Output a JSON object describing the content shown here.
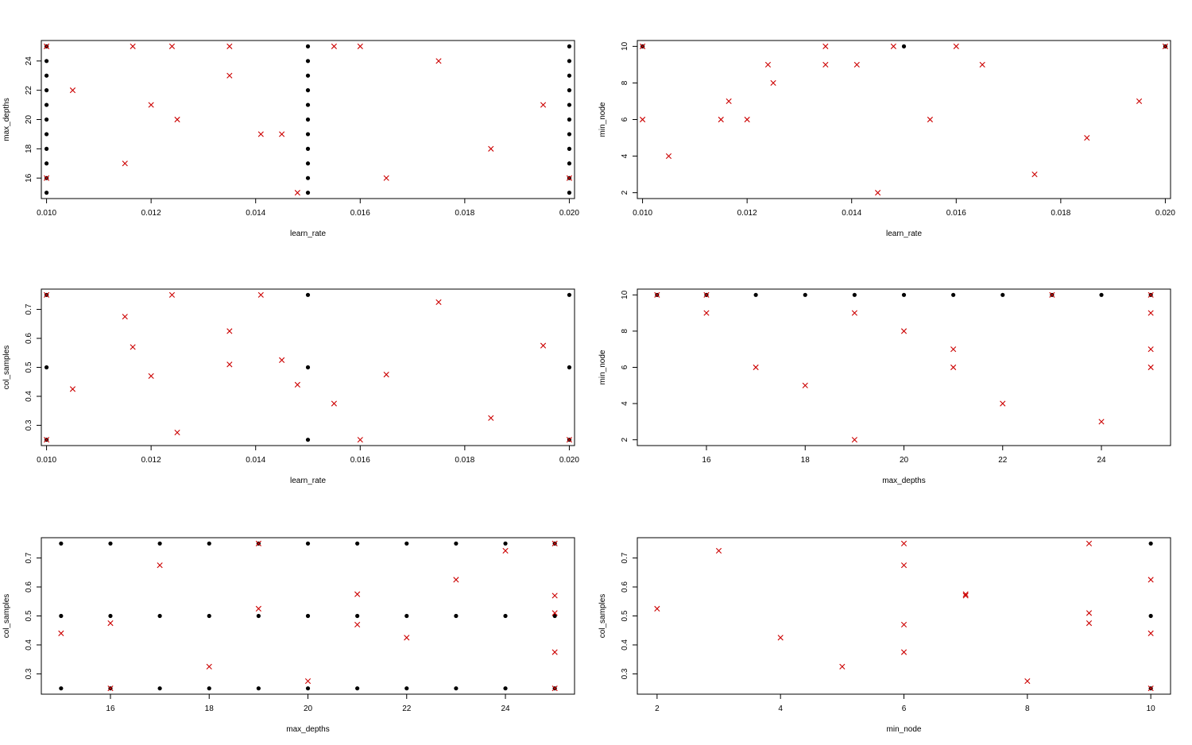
{
  "colors": {
    "grid_points": "#000000",
    "random_points": "#cc0000",
    "frame": "#000000",
    "background": "#ffffff"
  },
  "chart_data": [
    {
      "type": "scatter",
      "xlabel": "learn_rate",
      "ylabel": "max_depths",
      "xlim": [
        0.0099,
        0.0201
      ],
      "ylim": [
        14.6,
        25.4
      ],
      "xticks": [
        "0.010",
        "0.012",
        "0.014",
        "0.016",
        "0.018",
        "0.020"
      ],
      "yticks": [
        "16",
        "18",
        "20",
        "22",
        "24"
      ],
      "series": [
        {
          "marker": "dot",
          "grid_x": [
            0.01,
            0.015,
            0.02
          ],
          "grid_y": [
            15,
            16,
            17,
            18,
            19,
            20,
            21,
            22,
            23,
            24,
            25
          ]
        },
        {
          "marker": "x",
          "points": [
            [
              0.01,
              25
            ],
            [
              0.0105,
              22
            ],
            [
              0.0115,
              17
            ],
            [
              0.01165,
              25
            ],
            [
              0.012,
              21
            ],
            [
              0.0124,
              25
            ],
            [
              0.0125,
              20
            ],
            [
              0.0135,
              25
            ],
            [
              0.0135,
              23
            ],
            [
              0.0141,
              19
            ],
            [
              0.0145,
              19
            ],
            [
              0.0148,
              15
            ],
            [
              0.0155,
              25
            ],
            [
              0.016,
              25
            ],
            [
              0.0165,
              16
            ],
            [
              0.0175,
              24
            ],
            [
              0.0185,
              18
            ],
            [
              0.0195,
              21
            ],
            [
              0.01,
              16
            ],
            [
              0.02,
              16
            ]
          ]
        }
      ]
    },
    {
      "type": "scatter",
      "xlabel": "learn_rate",
      "ylabel": "min_node",
      "xlim": [
        0.0099,
        0.0201
      ],
      "ylim": [
        1.68,
        10.32
      ],
      "xticks": [
        "0.010",
        "0.012",
        "0.014",
        "0.016",
        "0.018",
        "0.020"
      ],
      "yticks": [
        "2",
        "4",
        "6",
        "8",
        "10"
      ],
      "series": [
        {
          "marker": "dot",
          "points": [
            [
              0.01,
              10
            ],
            [
              0.015,
              10
            ],
            [
              0.02,
              10
            ]
          ]
        },
        {
          "marker": "x",
          "points": [
            [
              0.01,
              10
            ],
            [
              0.01,
              6
            ],
            [
              0.0105,
              4
            ],
            [
              0.0115,
              6
            ],
            [
              0.01165,
              7
            ],
            [
              0.012,
              6
            ],
            [
              0.0124,
              9
            ],
            [
              0.0125,
              8
            ],
            [
              0.0135,
              10
            ],
            [
              0.0135,
              9
            ],
            [
              0.0141,
              9
            ],
            [
              0.0145,
              2
            ],
            [
              0.0148,
              10
            ],
            [
              0.0155,
              6
            ],
            [
              0.016,
              10
            ],
            [
              0.0165,
              9
            ],
            [
              0.0175,
              3
            ],
            [
              0.0185,
              5
            ],
            [
              0.0195,
              7
            ],
            [
              0.02,
              10
            ]
          ]
        }
      ]
    },
    {
      "type": "scatter",
      "xlabel": "learn_rate",
      "ylabel": "col_samples",
      "xlim": [
        0.0099,
        0.0201
      ],
      "ylim": [
        0.23,
        0.77
      ],
      "xticks": [
        "0.010",
        "0.012",
        "0.014",
        "0.016",
        "0.018",
        "0.020"
      ],
      "yticks": [
        "0.3",
        "0.4",
        "0.5",
        "0.6",
        "0.7"
      ],
      "series": [
        {
          "marker": "dot",
          "grid_x": [
            0.01,
            0.015,
            0.02
          ],
          "grid_y": [
            0.25,
            0.5,
            0.75
          ]
        },
        {
          "marker": "x",
          "points": [
            [
              0.01,
              0.75
            ],
            [
              0.01,
              0.25
            ],
            [
              0.0105,
              0.425
            ],
            [
              0.0115,
              0.675
            ],
            [
              0.01165,
              0.57
            ],
            [
              0.012,
              0.47
            ],
            [
              0.0124,
              0.75
            ],
            [
              0.0125,
              0.275
            ],
            [
              0.0135,
              0.625
            ],
            [
              0.0135,
              0.51
            ],
            [
              0.0141,
              0.75
            ],
            [
              0.0145,
              0.525
            ],
            [
              0.0148,
              0.44
            ],
            [
              0.0155,
              0.375
            ],
            [
              0.016,
              0.25
            ],
            [
              0.0165,
              0.475
            ],
            [
              0.0175,
              0.725
            ],
            [
              0.0185,
              0.325
            ],
            [
              0.0195,
              0.575
            ],
            [
              0.02,
              0.25
            ]
          ]
        }
      ]
    },
    {
      "type": "scatter",
      "xlabel": "max_depths",
      "ylabel": "min_node",
      "xlim": [
        14.6,
        25.4
      ],
      "ylim": [
        1.68,
        10.32
      ],
      "xticks": [
        "16",
        "18",
        "20",
        "22",
        "24"
      ],
      "yticks": [
        "2",
        "4",
        "6",
        "8",
        "10"
      ],
      "series": [
        {
          "marker": "dot",
          "grid_x": [
            15,
            16,
            17,
            18,
            19,
            20,
            21,
            22,
            23,
            24,
            25
          ],
          "grid_y": [
            10
          ]
        },
        {
          "marker": "x",
          "points": [
            [
              15,
              10
            ],
            [
              16,
              10
            ],
            [
              16,
              9
            ],
            [
              17,
              6
            ],
            [
              18,
              5
            ],
            [
              19,
              9
            ],
            [
              19,
              2
            ],
            [
              20,
              8
            ],
            [
              21,
              7
            ],
            [
              21,
              6
            ],
            [
              22,
              4
            ],
            [
              23,
              10
            ],
            [
              24,
              3
            ],
            [
              25,
              10
            ],
            [
              25,
              9
            ],
            [
              25,
              7
            ],
            [
              25,
              6
            ]
          ]
        }
      ]
    },
    {
      "type": "scatter",
      "xlabel": "max_depths",
      "ylabel": "col_samples",
      "xlim": [
        14.6,
        25.4
      ],
      "ylim": [
        0.23,
        0.77
      ],
      "xticks": [
        "16",
        "18",
        "20",
        "22",
        "24"
      ],
      "yticks": [
        "0.3",
        "0.4",
        "0.5",
        "0.6",
        "0.7"
      ],
      "series": [
        {
          "marker": "dot",
          "grid_x": [
            15,
            16,
            17,
            18,
            19,
            20,
            21,
            22,
            23,
            24,
            25
          ],
          "grid_y": [
            0.25,
            0.5,
            0.75
          ]
        },
        {
          "marker": "x",
          "points": [
            [
              15,
              0.44
            ],
            [
              16,
              0.475
            ],
            [
              16,
              0.25
            ],
            [
              17,
              0.675
            ],
            [
              18,
              0.325
            ],
            [
              19,
              0.75
            ],
            [
              19,
              0.525
            ],
            [
              20,
              0.275
            ],
            [
              21,
              0.575
            ],
            [
              21,
              0.47
            ],
            [
              22,
              0.425
            ],
            [
              23,
              0.625
            ],
            [
              24,
              0.725
            ],
            [
              25,
              0.75
            ],
            [
              25,
              0.57
            ],
            [
              25,
              0.51
            ],
            [
              25,
              0.375
            ],
            [
              25,
              0.25
            ]
          ]
        }
      ]
    },
    {
      "type": "scatter",
      "xlabel": "min_node",
      "ylabel": "col_samples",
      "xlim": [
        1.68,
        10.32
      ],
      "ylim": [
        0.23,
        0.77
      ],
      "xticks": [
        "2",
        "4",
        "6",
        "8",
        "10"
      ],
      "yticks": [
        "0.3",
        "0.4",
        "0.5",
        "0.6",
        "0.7"
      ],
      "series": [
        {
          "marker": "dot",
          "points": [
            [
              10,
              0.75
            ],
            [
              10,
              0.5
            ],
            [
              10,
              0.25
            ]
          ]
        },
        {
          "marker": "x",
          "points": [
            [
              2,
              0.525
            ],
            [
              3,
              0.725
            ],
            [
              4,
              0.425
            ],
            [
              5,
              0.325
            ],
            [
              6,
              0.75
            ],
            [
              6,
              0.675
            ],
            [
              6,
              0.47
            ],
            [
              6,
              0.375
            ],
            [
              7,
              0.575
            ],
            [
              7,
              0.57
            ],
            [
              8,
              0.275
            ],
            [
              9,
              0.75
            ],
            [
              9,
              0.51
            ],
            [
              9,
              0.475
            ],
            [
              10,
              0.625
            ],
            [
              10,
              0.44
            ],
            [
              10,
              0.25
            ]
          ]
        }
      ]
    }
  ]
}
